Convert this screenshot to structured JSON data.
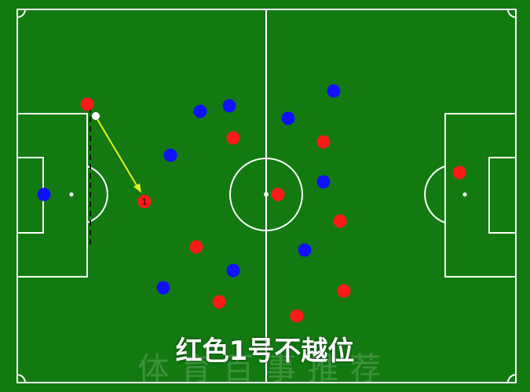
{
  "colors": {
    "pitch": "#137a12",
    "lines": "#ffffff",
    "team_red": "#ff1a1a",
    "team_blue": "#1010ff",
    "arrow": "#e8f21a"
  },
  "caption": "红色1号不越位",
  "watermark": "体育百事推荐",
  "red_players": [
    {
      "id": "r-gk"
    },
    {
      "id": "r-1",
      "label": "1"
    },
    {
      "id": "r-top"
    },
    {
      "id": "r-2"
    },
    {
      "id": "r-3"
    },
    {
      "id": "r-4"
    },
    {
      "id": "r-5"
    },
    {
      "id": "r-6"
    },
    {
      "id": "r-7"
    },
    {
      "id": "r-8"
    },
    {
      "id": "r-9"
    }
  ],
  "blue_players": [
    {
      "id": "b-gk"
    },
    {
      "id": "b-1"
    },
    {
      "id": "b-2"
    },
    {
      "id": "b-3"
    },
    {
      "id": "b-4"
    },
    {
      "id": "b-5"
    },
    {
      "id": "b-6"
    },
    {
      "id": "b-7"
    },
    {
      "id": "b-8"
    },
    {
      "id": "b-9"
    },
    {
      "id": "b-10"
    }
  ],
  "ball": {
    "color": "#ffffff"
  },
  "offside_line": {
    "style": "dashed",
    "color": "#111111"
  }
}
